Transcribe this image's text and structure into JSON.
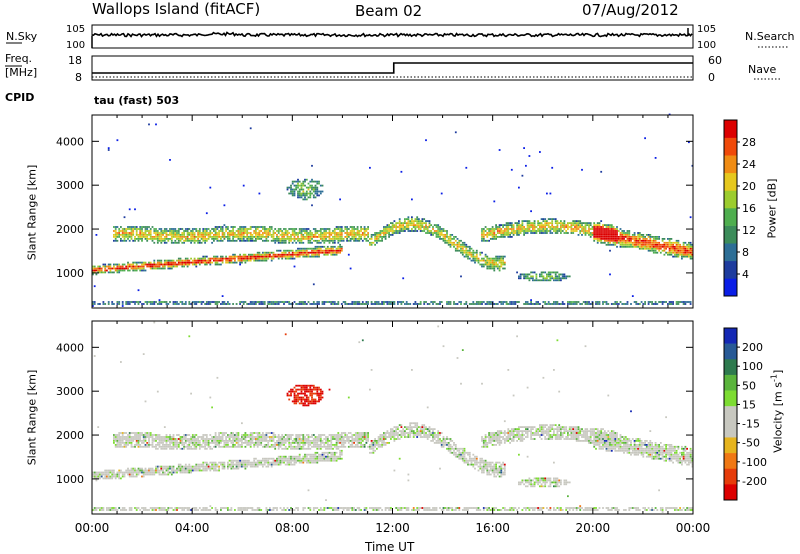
{
  "header": {
    "station": "Wallops Island (fitACF)",
    "beam": "Beam 02",
    "date": "07/Aug/2012"
  },
  "noise_panel": {
    "left_label": "N.Sky",
    "right_label": "N.Search",
    "ticks": [
      "10^5",
      "10^0"
    ]
  },
  "freq_panel": {
    "left_label_line1": "Freq.",
    "left_label_line2": "[MHz]",
    "left_ticks": [
      "18",
      "8"
    ],
    "right_label": "Nave",
    "right_ticks": [
      "60",
      "0"
    ],
    "cpid_label": "CPID",
    "cpid_value": "tau (fast) 503"
  },
  "colors": {
    "power": [
      "#0a1ee6",
      "#1e3c9e",
      "#2d6e96",
      "#3c8c5a",
      "#4fae4f",
      "#9ccc2e",
      "#e6c81e",
      "#f08c14",
      "#f04a0a",
      "#dc0000"
    ],
    "velocity": [
      "#1428b4",
      "#285a96",
      "#2e7a4e",
      "#5ab43c",
      "#7ddc32",
      "#c8c8c0",
      "#c8c8c0",
      "#e6b41e",
      "#f07814",
      "#e63c0a",
      "#dc0000"
    ]
  },
  "chart_data": [
    {
      "type": "heatmap",
      "name": "power",
      "ylabel": "Slant Range [km]",
      "yticks": [
        "1000",
        "2000",
        "3000",
        "4000"
      ],
      "ylim": [
        200,
        4600
      ],
      "xlim": [
        0,
        24
      ],
      "colorbar_label": "Power [dB]",
      "colorbar_ticks": [
        "4",
        "8",
        "12",
        "16",
        "20",
        "24",
        "28"
      ],
      "colorbar_range": [
        0,
        32
      ]
    },
    {
      "type": "heatmap",
      "name": "velocity",
      "ylabel": "Slant Range [km]",
      "yticks": [
        "1000",
        "2000",
        "3000",
        "4000"
      ],
      "ylim": [
        200,
        4600
      ],
      "xlim": [
        0,
        24
      ],
      "colorbar_label": "Velocity [m s",
      "colorbar_label_sup": "-1",
      "colorbar_label_end": "]",
      "colorbar_ticks": [
        "200",
        "100",
        "50",
        "15",
        "-15",
        "-50",
        "-100",
        "-200"
      ]
    }
  ],
  "x_axis": {
    "ticks": [
      "00:00",
      "04:00",
      "08:00",
      "12:00",
      "16:00",
      "20:00",
      "00:00"
    ],
    "label": "Time UT"
  }
}
